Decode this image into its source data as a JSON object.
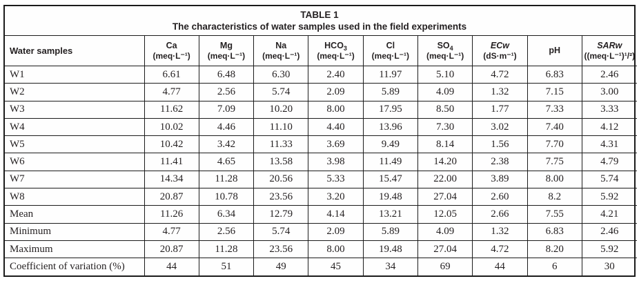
{
  "title": "TABLE 1",
  "subtitle": "The characteristics of water samples used in the field experiments",
  "colors": {
    "text": "#231f20",
    "border": "#1a1a1a",
    "background": "#ffffff"
  },
  "table": {
    "headers": [
      {
        "name": "Water samples",
        "sub": "",
        "unit": ""
      },
      {
        "name": "Ca",
        "sub": "",
        "unit": "(meq·L⁻¹)"
      },
      {
        "name": "Mg",
        "sub": "",
        "unit": "(meq·L⁻¹)"
      },
      {
        "name": "Na",
        "sub": "",
        "unit": "(meq·L⁻¹)"
      },
      {
        "name": "HCO",
        "sub": "3",
        "unit": "(meq·L⁻¹)"
      },
      {
        "name": "Cl",
        "sub": "",
        "unit": "(meq·L⁻¹)"
      },
      {
        "name": "SO",
        "sub": "4",
        "unit": "(meq·L⁻¹)"
      },
      {
        "name": "ECw",
        "sub": "",
        "unit": "(dS·m⁻¹)"
      },
      {
        "name": "pH",
        "sub": "",
        "unit": ""
      },
      {
        "name": "SARw",
        "sub": "",
        "unit": "((meq·L⁻¹)¹/²)"
      }
    ],
    "rows": [
      {
        "label": "W1",
        "values": [
          "6.61",
          "6.48",
          "6.30",
          "2.40",
          "11.97",
          "5.10",
          "4.72",
          "6.83",
          "2.46"
        ]
      },
      {
        "label": "W2",
        "values": [
          "4.77",
          "2.56",
          "5.74",
          "2.09",
          "5.89",
          "4.09",
          "1.32",
          "7.15",
          "3.00"
        ]
      },
      {
        "label": "W3",
        "values": [
          "11.62",
          "7.09",
          "10.20",
          "8.00",
          "17.95",
          "8.50",
          "1.77",
          "7.33",
          "3.33"
        ]
      },
      {
        "label": "W4",
        "values": [
          "10.02",
          "4.46",
          "11.10",
          "4.40",
          "13.96",
          "7.30",
          "3.02",
          "7.40",
          "4.12"
        ]
      },
      {
        "label": "W5",
        "values": [
          "10.42",
          "3.42",
          "11.33",
          "3.69",
          "9.49",
          "8.14",
          "1.56",
          "7.70",
          "4.31"
        ]
      },
      {
        "label": "W6",
        "values": [
          "11.41",
          "4.65",
          "13.58",
          "3.98",
          "11.49",
          "14.20",
          "2.38",
          "7.75",
          "4.79"
        ]
      },
      {
        "label": "W7",
        "values": [
          "14.34",
          "11.28",
          "20.56",
          "5.33",
          "15.47",
          "22.00",
          "3.89",
          "8.00",
          "5.74"
        ]
      },
      {
        "label": "W8",
        "values": [
          "20.87",
          "10.78",
          "23.56",
          "3.20",
          "19.48",
          "27.04",
          "2.60",
          "8.2",
          "5.92"
        ]
      },
      {
        "label": "Mean",
        "values": [
          "11.26",
          "6.34",
          "12.79",
          "4.14",
          "13.21",
          "12.05",
          "2.66",
          "7.55",
          "4.21"
        ]
      },
      {
        "label": "Minimum",
        "values": [
          "4.77",
          "2.56",
          "5.74",
          "2.09",
          "5.89",
          "4.09",
          "1.32",
          "6.83",
          "2.46"
        ]
      },
      {
        "label": "Maximum",
        "values": [
          "20.87",
          "11.28",
          "23.56",
          "8.00",
          "19.48",
          "27.04",
          "4.72",
          "8.20",
          "5.92"
        ]
      },
      {
        "label": "Coefficient of variation (%)",
        "values": [
          "44",
          "51",
          "49",
          "45",
          "34",
          "69",
          "44",
          "6",
          "30"
        ]
      }
    ]
  }
}
